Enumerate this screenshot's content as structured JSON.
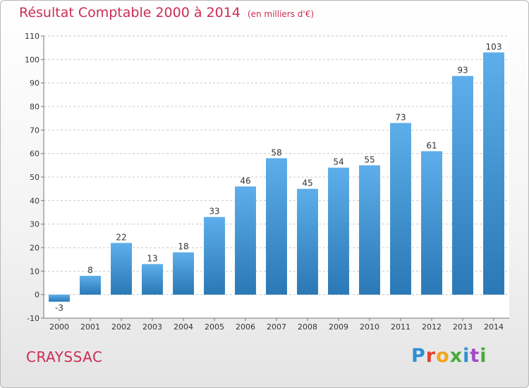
{
  "header": {
    "title": "Résultat Comptable 2000 à 2014",
    "subtitle": "(en milliers d'€)"
  },
  "footer": {
    "place": "CRAYSSAC",
    "logo_letters": [
      "P",
      "r",
      "o",
      "x",
      "i",
      "t",
      "i"
    ]
  },
  "colors": {
    "accent": "#cc2d55",
    "bar_top": "#5daeea",
    "bar_bottom": "#2a78b5",
    "grid": "#c8c8c8"
  },
  "chart_data": {
    "type": "bar",
    "title": "Résultat Comptable 2000 à 2014",
    "subtitle": "(en milliers d'€)",
    "xlabel": "",
    "ylabel": "",
    "ylim": [
      -10,
      110
    ],
    "yticks": [
      -10,
      0,
      10,
      20,
      30,
      40,
      50,
      60,
      70,
      80,
      90,
      100,
      110
    ],
    "grid": true,
    "categories": [
      "2000",
      "2001",
      "2002",
      "2003",
      "2004",
      "2005",
      "2006",
      "2007",
      "2008",
      "2009",
      "2010",
      "2011",
      "2012",
      "2013",
      "2014"
    ],
    "values": [
      -3,
      8,
      22,
      13,
      18,
      33,
      46,
      58,
      45,
      54,
      55,
      73,
      61,
      93,
      103
    ]
  }
}
